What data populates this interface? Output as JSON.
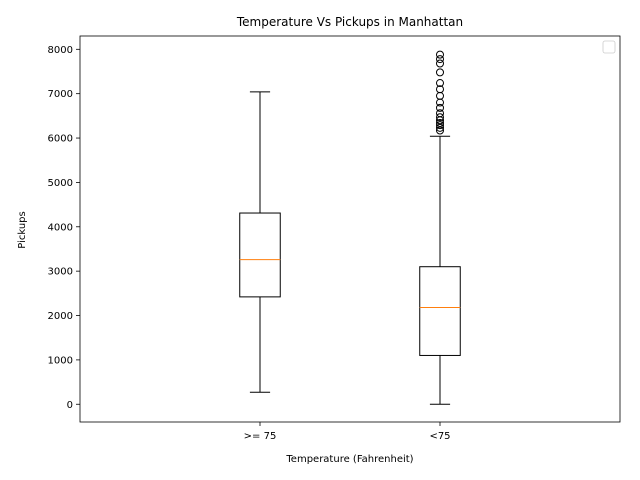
{
  "chart_data": {
    "type": "box",
    "title": "Temperature Vs Pickups in Manhattan",
    "xlabel": "Temperature (Fahrenheit)",
    "ylabel": "Pickups",
    "categories": [
      ">= 75",
      "<75"
    ],
    "ylim": [
      -400,
      8300
    ],
    "yticks": [
      0,
      1000,
      2000,
      3000,
      4000,
      5000,
      6000,
      7000,
      8000
    ],
    "boxes": [
      {
        "category": ">= 75",
        "whisker_low": 270,
        "q1": 2420,
        "median": 3260,
        "q3": 4310,
        "whisker_high": 7040,
        "outliers": []
      },
      {
        "category": "<75",
        "whisker_low": 0,
        "q1": 1100,
        "median": 2180,
        "q3": 3100,
        "whisker_high": 6040,
        "outliers": [
          6170,
          6230,
          6290,
          6340,
          6400,
          6470,
          6560,
          6680,
          6800,
          6950,
          7100,
          7240,
          7480,
          7680,
          7780,
          7880
        ]
      }
    ],
    "colors": {
      "box": "#000000",
      "median": "#ff7f0e",
      "background": "#ffffff"
    },
    "legend": {
      "placement": "top-right",
      "entries": []
    },
    "grid": false
  }
}
